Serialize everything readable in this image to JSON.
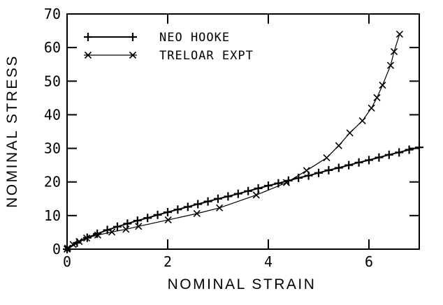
{
  "chart_data": {
    "type": "line",
    "title": "",
    "xlabel": "NOMINAL STRAIN",
    "ylabel": "NOMINAL STRESS",
    "xlim": [
      0,
      7
    ],
    "ylim": [
      0,
      70
    ],
    "xticks": [
      0,
      2,
      4,
      6
    ],
    "yticks": [
      0,
      10,
      20,
      30,
      40,
      50,
      60,
      70
    ],
    "grid": false,
    "legend_position": "top-left",
    "series": [
      {
        "name": "NEO HOOKE",
        "marker": "plus",
        "x": [
          0,
          0.2,
          0.4,
          0.6,
          0.8,
          1.0,
          1.2,
          1.4,
          1.6,
          1.8,
          2.0,
          2.2,
          2.4,
          2.6,
          2.8,
          3.0,
          3.2,
          3.4,
          3.6,
          3.8,
          4.0,
          4.2,
          4.4,
          4.6,
          4.8,
          5.0,
          5.2,
          5.4,
          5.6,
          5.8,
          6.0,
          6.2,
          6.4,
          6.6,
          6.8,
          7.0
        ],
        "y": [
          0,
          1.9,
          3.4,
          4.6,
          5.7,
          6.7,
          7.6,
          8.5,
          9.3,
          10.2,
          11.0,
          11.8,
          12.6,
          13.4,
          14.2,
          15.0,
          15.7,
          16.5,
          17.3,
          18.1,
          18.9,
          19.6,
          20.4,
          21.2,
          21.9,
          22.7,
          23.5,
          24.2,
          25.0,
          25.8,
          26.5,
          27.3,
          28.1,
          28.8,
          29.6,
          30.3
        ]
      },
      {
        "name": "TRELOAR EXPT",
        "marker": "x",
        "x": [
          0,
          0.01,
          0.12,
          0.24,
          0.39,
          0.61,
          0.89,
          1.17,
          1.42,
          2.01,
          2.58,
          3.03,
          3.76,
          4.36,
          4.76,
          5.16,
          5.4,
          5.62,
          5.87,
          6.05,
          6.16,
          6.27,
          6.43,
          6.5,
          6.61
        ],
        "y": [
          0,
          0.3,
          1.4,
          2.3,
          3.3,
          4.2,
          5.1,
          5.9,
          6.8,
          8.7,
          10.6,
          12.3,
          16.1,
          19.8,
          23.4,
          27.2,
          30.8,
          34.6,
          38.2,
          42.0,
          45.1,
          48.8,
          54.7,
          58.8,
          64.0
        ]
      }
    ]
  },
  "colors": {
    "foreground": "#000000",
    "background": "#ffffff"
  }
}
